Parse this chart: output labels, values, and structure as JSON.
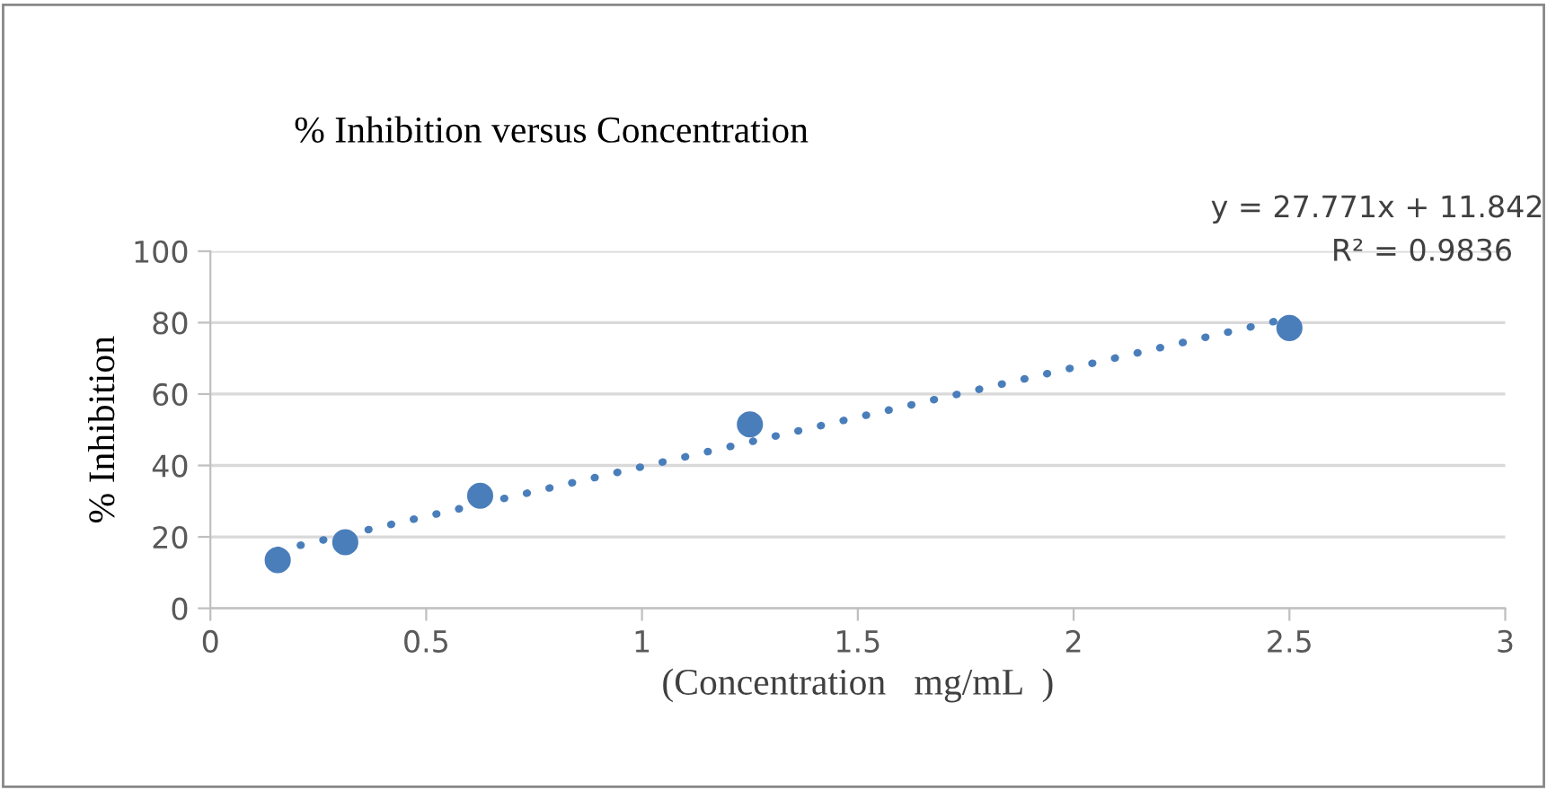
{
  "chart_data": {
    "type": "scatter",
    "title": "% Inhibition versus Concentration",
    "xlabel": "(Concentration   mg/mL  )",
    "ylabel": "% Inhibition",
    "x": [
      0.156,
      0.3125,
      0.625,
      1.25,
      2.5
    ],
    "series": [
      {
        "color": "#4a7ebb",
        "marker": "circle",
        "values": [
          13.5,
          18.5,
          31.5,
          51.5,
          78.5
        ]
      },
      {
        "type": "line",
        "color": "#4a7ebb",
        "line_style": "dotted",
        "marker": "none",
        "x": [
          0.156,
          2.5
        ],
        "values": [
          16.2,
          81.3
        ]
      }
    ],
    "annotations": [
      "y = 27.771x + 11.842",
      "R² = 0.9836"
    ],
    "xlim": [
      0,
      3
    ],
    "xticks": [
      0,
      0.5,
      1,
      1.5,
      2,
      2.5,
      3
    ],
    "ylim": [
      0,
      100
    ],
    "yticks": [
      0,
      20,
      40,
      60,
      80,
      100
    ],
    "grid": "y",
    "legend": false
  }
}
